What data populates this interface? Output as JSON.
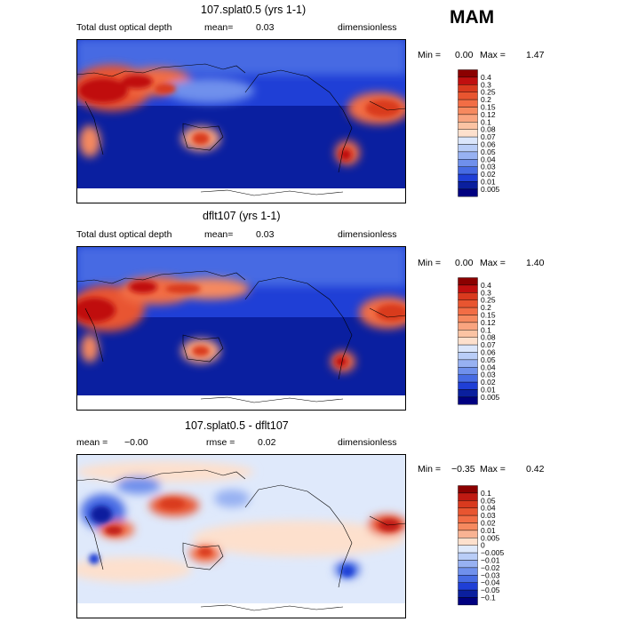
{
  "season": "MAM",
  "panels": [
    {
      "title": "107.splat0.5 (yrs 1-1)",
      "subtitle_left": "Total dust optical depth",
      "mean_label": "mean=",
      "mean_value": "0.03",
      "units": "dimensionless",
      "min_label": "Min =",
      "min_value": "0.00",
      "max_label": "Max =",
      "max_value": "1.47",
      "colorbar": {
        "levels": [
          "0.4",
          "0.3",
          "0.25",
          "0.2",
          "0.15",
          "0.12",
          "0.1",
          "0.08",
          "0.07",
          "0.06",
          "0.05",
          "0.04",
          "0.03",
          "0.02",
          "0.01",
          "0.005"
        ],
        "colors": [
          "#8b0000",
          "#c00f0f",
          "#d93a1e",
          "#e85530",
          "#f26d45",
          "#f6895f",
          "#f9a47f",
          "#fbc3a3",
          "#fde0cd",
          "#dbe6fb",
          "#b9cdf7",
          "#97b1f2",
          "#6f90ec",
          "#466be3",
          "#1f3fd6",
          "#0a1f9e",
          "#000080"
        ]
      }
    },
    {
      "title": "dflt107 (yrs 1-1)",
      "subtitle_left": "Total dust optical depth",
      "mean_label": "mean=",
      "mean_value": "0.03",
      "units": "dimensionless",
      "min_label": "Min =",
      "min_value": "0.00",
      "max_label": "Max =",
      "max_value": "1.40",
      "colorbar": {
        "levels": [
          "0.4",
          "0.3",
          "0.25",
          "0.2",
          "0.15",
          "0.12",
          "0.1",
          "0.08",
          "0.07",
          "0.06",
          "0.05",
          "0.04",
          "0.03",
          "0.02",
          "0.01",
          "0.005"
        ],
        "colors": [
          "#8b0000",
          "#c00f0f",
          "#d93a1e",
          "#e85530",
          "#f26d45",
          "#f6895f",
          "#f9a47f",
          "#fbc3a3",
          "#fde0cd",
          "#dbe6fb",
          "#b9cdf7",
          "#97b1f2",
          "#6f90ec",
          "#466be3",
          "#1f3fd6",
          "#0a1f9e",
          "#000080"
        ]
      }
    },
    {
      "title": "107.splat0.5 - dflt107",
      "subtitle_left": "",
      "mean_label": "mean =",
      "mean_value": "−0.00",
      "rmse_label": "rmse =",
      "rmse_value": "0.02",
      "units": "dimensionless",
      "min_label": "Min =",
      "min_value": "−0.35",
      "max_label": "Max =",
      "max_value": "0.42",
      "colorbar": {
        "levels": [
          "0.1",
          "0.05",
          "0.04",
          "0.03",
          "0.02",
          "0.01",
          "0.005",
          "0",
          "−0.005",
          "−0.01",
          "−0.02",
          "−0.03",
          "−0.04",
          "−0.05",
          "−0.1"
        ],
        "colors": [
          "#8b0000",
          "#c01a12",
          "#d93a1e",
          "#e85530",
          "#f26d45",
          "#f6895f",
          "#f9b393",
          "#fde0cd",
          "#dfe9fb",
          "#b9cdf7",
          "#97b1f2",
          "#6f90ec",
          "#466be3",
          "#1f3fd6",
          "#0a1f9e",
          "#000080"
        ]
      }
    }
  ],
  "chart_data": {
    "type": "heatmap",
    "description": "Global maps (Pacific-centered, 0-360 longitude) of total dust optical depth for season MAM",
    "season": "MAM",
    "maps": [
      {
        "title": "107.splat0.5 (yrs 1-1)",
        "variable": "Total dust optical depth",
        "mean": 0.03,
        "min": 0.0,
        "max": 1.47,
        "units": "dimensionless"
      },
      {
        "title": "dflt107 (yrs 1-1)",
        "variable": "Total dust optical depth",
        "mean": 0.03,
        "min": 0.0,
        "max": 1.4,
        "units": "dimensionless"
      },
      {
        "title": "107.splat0.5 - dflt107",
        "mean": -0.0,
        "rmse": 0.02,
        "min": -0.35,
        "max": 0.42,
        "units": "dimensionless"
      }
    ]
  }
}
